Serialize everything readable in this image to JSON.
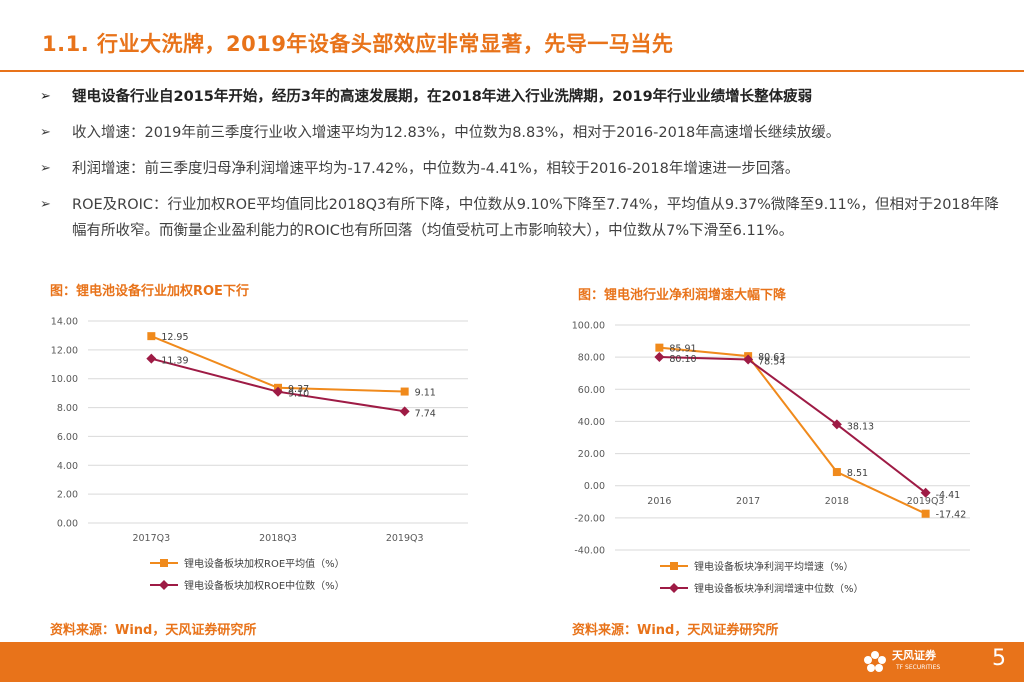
{
  "title": "1.1. 行业大洗牌，2019年设备头部效应非常显著，先导一马当先",
  "bullet_mark": "➢",
  "bullets": [
    "锂电设备行业自2015年开始，经历3年的高速发展期，在2018年进入行业洗牌期，2019年行业业绩增长整体疲弱",
    "收入增速：2019年前三季度行业收入增速平均为12.83%，中位数为8.83%，相对于2016-2018年高速增长继续放缓。",
    "利润增速：前三季度归母净利润增速平均为-17.42%，中位数为-4.41%，相较于2016-2018年增速进一步回落。",
    "ROE及ROIC：行业加权ROE平均值同比2018Q3有所下降，中位数从9.10%下降至7.74%，平均值从9.37%微降至9.11%，但相对于2018年降幅有所收窄。而衡量企业盈利能力的ROIC也有所回落（均值受杭可上市影响较大），中位数从7%下滑至6.11%。"
  ],
  "left_caption": "图：锂电池设备行业加权ROE下行",
  "right_caption": "图：锂电池行业净利润增速大幅下降",
  "left_source": "资料来源：Wind，天风证券研究所",
  "right_source": "资料来源：Wind，天风证券研究所",
  "page_number": "5",
  "logo": {
    "name": "天风证券",
    "sub": "TF SECURITIES"
  },
  "colors": {
    "accent": "#E8731A",
    "orange_series": "#F08A1C",
    "red_series": "#9E1B45"
  },
  "chart_data": [
    {
      "type": "line",
      "title": "图：锂电池设备行业加权ROE下行",
      "categories": [
        "2017Q3",
        "2018Q3",
        "2019Q3"
      ],
      "yticks": [
        "14.00",
        "12.00",
        "10.00",
        "8.00",
        "6.00",
        "4.00",
        "2.00",
        "0.00"
      ],
      "ylim": [
        0,
        14
      ],
      "series": [
        {
          "name": "锂电设备板块加权ROE平均值（%）",
          "values": [
            12.95,
            9.37,
            9.11
          ],
          "labels": [
            "12.95",
            "9.37",
            "9.11"
          ],
          "color": "#F08A1C",
          "marker": "square"
        },
        {
          "name": "锂电设备板块加权ROE中位数（%）",
          "values": [
            11.39,
            9.1,
            7.74
          ],
          "labels": [
            "11.39",
            "9.10",
            "7.74"
          ],
          "color": "#9E1B45",
          "marker": "diamond"
        }
      ]
    },
    {
      "type": "line",
      "title": "图：锂电池行业净利润增速大幅下降",
      "categories": [
        "2016",
        "2017",
        "2018",
        "2019Q3"
      ],
      "yticks": [
        "100.00",
        "80.00",
        "60.00",
        "40.00",
        "20.00",
        "0.00",
        "-20.00",
        "-40.00"
      ],
      "ylim": [
        -40,
        100
      ],
      "series": [
        {
          "name": "锂电设备板块净利润平均增速（%）",
          "values": [
            85.91,
            80.63,
            8.51,
            -17.42
          ],
          "labels": [
            "85.91",
            "80.63",
            "8.51",
            "-17.42"
          ],
          "color": "#F08A1C",
          "marker": "square"
        },
        {
          "name": "锂电设备板块净利润增速中位数（%）",
          "values": [
            80.1,
            78.54,
            38.13,
            -4.41
          ],
          "labels": [
            "80.10",
            "78.54",
            "38.13",
            "-4.41"
          ],
          "color": "#9E1B45",
          "marker": "diamond"
        }
      ]
    }
  ]
}
